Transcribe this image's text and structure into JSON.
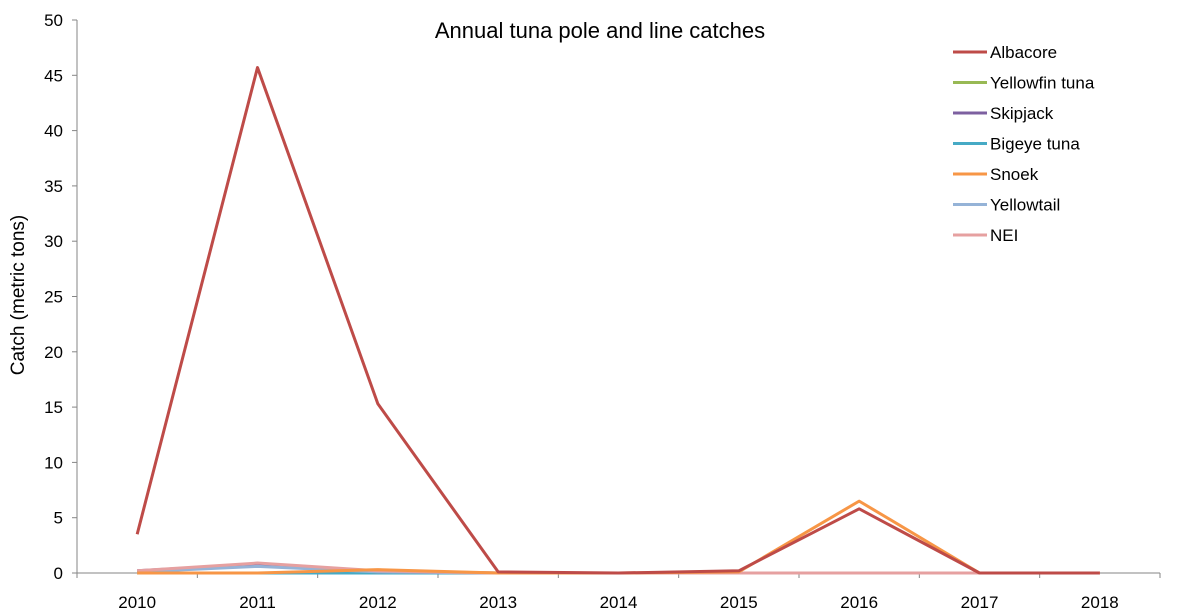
{
  "chart_data": {
    "type": "line",
    "title": "Annual tuna pole and line catches",
    "xlabel": "",
    "ylabel": "Catch (metric tons)",
    "categories": [
      "2010",
      "2011",
      "2012",
      "2013",
      "2014",
      "2015",
      "2016",
      "2017",
      "2018"
    ],
    "ylim": [
      0,
      50
    ],
    "yticks": [
      0,
      5,
      10,
      15,
      20,
      25,
      30,
      35,
      40,
      45,
      50
    ],
    "grid": false,
    "legend_position": "top-right",
    "series": [
      {
        "name": "Albacore",
        "color": "#be4b48",
        "values": [
          3.5,
          45.7,
          15.3,
          0.1,
          0,
          0.2,
          5.8,
          0,
          0
        ]
      },
      {
        "name": "Yellowfin tuna",
        "color": "#98b954",
        "values": [
          0.1,
          0.7,
          0.1,
          0,
          0,
          0,
          0,
          0,
          0
        ]
      },
      {
        "name": "Skipjack",
        "color": "#7d60a0",
        "values": [
          0.2,
          0.8,
          0.1,
          0,
          0,
          0,
          0,
          0,
          0
        ]
      },
      {
        "name": "Bigeye tuna",
        "color": "#46aac5",
        "values": [
          0,
          0,
          0,
          0,
          0,
          0,
          0,
          0,
          0
        ]
      },
      {
        "name": "Snoek",
        "color": "#f79646",
        "values": [
          0,
          0,
          0.3,
          0,
          0,
          0.1,
          6.5,
          0,
          0
        ]
      },
      {
        "name": "Yellowtail",
        "color": "#95b3d7",
        "values": [
          0.1,
          0.6,
          0.1,
          0,
          0,
          0,
          0,
          0,
          0
        ]
      },
      {
        "name": "NEI",
        "color": "#e6a0a0",
        "values": [
          0.2,
          0.9,
          0.2,
          0,
          0,
          0,
          0,
          0,
          0
        ]
      }
    ]
  }
}
